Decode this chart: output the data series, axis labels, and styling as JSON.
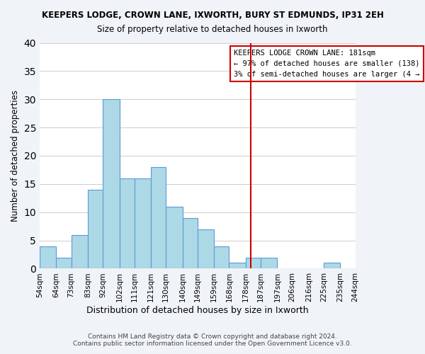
{
  "title": "KEEPERS LODGE, CROWN LANE, IXWORTH, BURY ST EDMUNDS, IP31 2EH",
  "subtitle": "Size of property relative to detached houses in Ixworth",
  "xlabel": "Distribution of detached houses by size in Ixworth",
  "ylabel": "Number of detached properties",
  "bar_color": "#add8e6",
  "bar_edge_color": "#5b9bd5",
  "background_color": "#f0f4f8",
  "plot_bg_color": "#ffffff",
  "bin_edges": [
    54,
    64,
    73,
    83,
    92,
    102,
    111,
    121,
    130,
    140,
    149,
    159,
    168,
    178,
    187,
    197,
    206,
    216,
    225,
    235,
    244
  ],
  "bin_labels": [
    "54sqm",
    "64sqm",
    "73sqm",
    "83sqm",
    "92sqm",
    "102sqm",
    "111sqm",
    "121sqm",
    "130sqm",
    "140sqm",
    "149sqm",
    "159sqm",
    "168sqm",
    "178sqm",
    "187sqm",
    "197sqm",
    "206sqm",
    "216sqm",
    "225sqm",
    "235sqm",
    "244sqm"
  ],
  "counts": [
    4,
    2,
    6,
    14,
    30,
    16,
    16,
    18,
    11,
    9,
    7,
    4,
    1,
    2,
    2,
    0,
    0,
    0,
    1,
    0
  ],
  "vline_x": 181,
  "vline_color": "#cc0000",
  "ylim": [
    0,
    40
  ],
  "yticks": [
    0,
    5,
    10,
    15,
    20,
    25,
    30,
    35,
    40
  ],
  "annotation_title": "KEEPERS LODGE CROWN LANE: 181sqm",
  "annotation_line1": "← 97% of detached houses are smaller (138)",
  "annotation_line2": "3% of semi-detached houses are larger (4 →",
  "footer_line1": "Contains HM Land Registry data © Crown copyright and database right 2024.",
  "footer_line2": "Contains public sector information licensed under the Open Government Licence v3.0."
}
